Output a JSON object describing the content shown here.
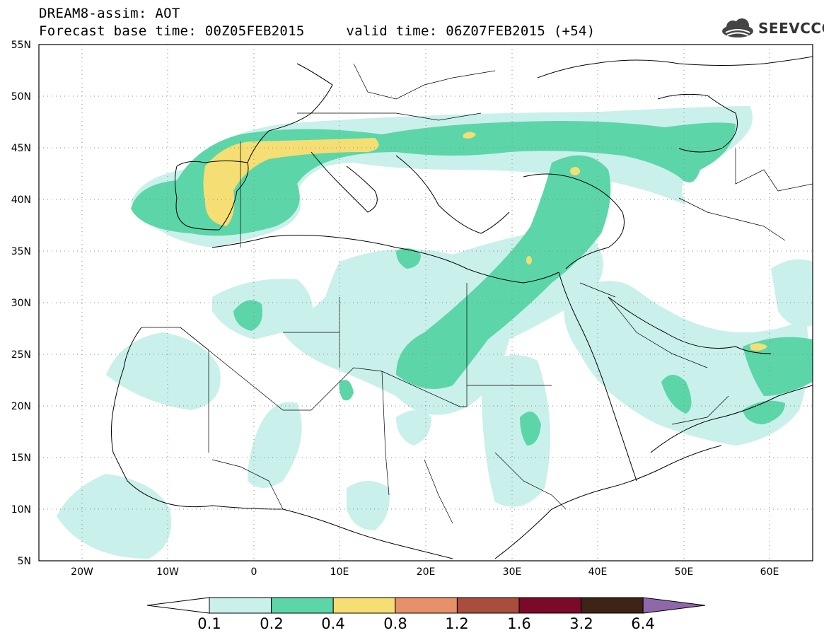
{
  "title": {
    "line1": "DREAM8-assim: AOT",
    "line2": "Forecast base time: 00Z05FEB2015     valid time: 06Z07FEB2015 (+54)"
  },
  "logo": {
    "text": "SEEVCCC",
    "icon": "cloud-icon"
  },
  "axes": {
    "lat_labels": [
      "55N",
      "50N",
      "45N",
      "40N",
      "35N",
      "30N",
      "25N",
      "20N",
      "15N",
      "10N",
      "5N"
    ],
    "lon_labels": [
      "20W",
      "10W",
      "0",
      "10E",
      "20E",
      "30E",
      "40E",
      "50E",
      "60E"
    ],
    "lon_range": [
      -25,
      65
    ],
    "lat_range": [
      5,
      55
    ],
    "grid": "dotted"
  },
  "legend": {
    "levels": [
      "0.1",
      "0.2",
      "0.4",
      "0.8",
      "1.2",
      "1.6",
      "3.2",
      "6.4"
    ],
    "colors": [
      "#ffffff",
      "#c9f0ea",
      "#5cd6a8",
      "#f5de73",
      "#e8906a",
      "#a94d3c",
      "#7a0a28",
      "#3d2416",
      "#8e68a8"
    ]
  },
  "field": {
    "variable": "AOT",
    "colors": {
      "low": "#c9f0ea",
      "mid": "#5cd6a8",
      "high": "#f5de73"
    }
  }
}
